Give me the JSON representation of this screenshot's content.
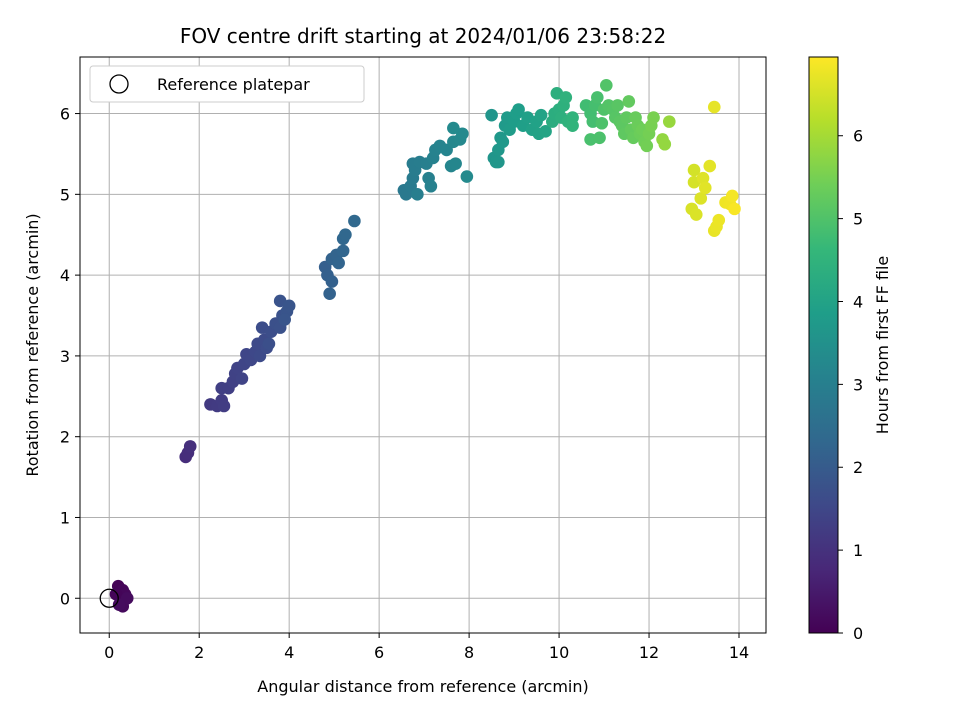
{
  "chart_data": {
    "type": "scatter",
    "title": "FOV centre drift starting at 2024/01/06 23:58:22",
    "xlabel": "Angular distance from reference (arcmin)",
    "ylabel": "Rotation from reference (arcmin)",
    "xlim": [
      -0.65,
      14.6
    ],
    "ylim": [
      -0.43,
      6.7
    ],
    "xticks": [
      0,
      2,
      4,
      6,
      8,
      10,
      12,
      14
    ],
    "yticks": [
      0,
      1,
      2,
      3,
      4,
      5,
      6
    ],
    "grid": true,
    "legend": {
      "placement": "top-left",
      "entries": [
        {
          "label": "Reference platepar",
          "marker": "open-circle"
        }
      ]
    },
    "reference_point": {
      "x": 0,
      "y": 0
    },
    "colorbar": {
      "label": "Hours from first FF file",
      "colormap": "viridis",
      "range": [
        0,
        6.95
      ],
      "ticks": [
        0,
        1,
        2,
        3,
        4,
        5,
        6
      ]
    },
    "color_stops": [
      "#440154",
      "#482878",
      "#3e4989",
      "#31688e",
      "#26828e",
      "#1f9e89",
      "#35b779",
      "#6ece58",
      "#b5de2b",
      "#fde725"
    ],
    "points": [
      {
        "x": 0.2,
        "y": 0.15,
        "hours": 0.05
      },
      {
        "x": 0.3,
        "y": 0.1,
        "hours": 0.1
      },
      {
        "x": 0.35,
        "y": 0.05,
        "hours": 0.12
      },
      {
        "x": 0.25,
        "y": -0.05,
        "hours": 0.15
      },
      {
        "x": 0.3,
        "y": -0.1,
        "hours": 0.18
      },
      {
        "x": 0.15,
        "y": 0.05,
        "hours": 0.08
      },
      {
        "x": 0.4,
        "y": 0.0,
        "hours": 0.2
      },
      {
        "x": 0.22,
        "y": -0.08,
        "hours": 0.22
      },
      {
        "x": 1.7,
        "y": 1.75,
        "hours": 0.9
      },
      {
        "x": 1.75,
        "y": 1.8,
        "hours": 0.92
      },
      {
        "x": 1.8,
        "y": 1.88,
        "hours": 0.95
      },
      {
        "x": 2.25,
        "y": 2.4,
        "hours": 1.2
      },
      {
        "x": 2.4,
        "y": 2.38,
        "hours": 1.22
      },
      {
        "x": 2.5,
        "y": 2.45,
        "hours": 1.25
      },
      {
        "x": 2.55,
        "y": 2.38,
        "hours": 1.27
      },
      {
        "x": 2.5,
        "y": 2.6,
        "hours": 1.3
      },
      {
        "x": 2.65,
        "y": 2.6,
        "hours": 1.32
      },
      {
        "x": 2.75,
        "y": 2.68,
        "hours": 1.35
      },
      {
        "x": 2.8,
        "y": 2.78,
        "hours": 1.38
      },
      {
        "x": 2.85,
        "y": 2.85,
        "hours": 1.4
      },
      {
        "x": 2.95,
        "y": 2.72,
        "hours": 1.42
      },
      {
        "x": 3.0,
        "y": 2.9,
        "hours": 1.45
      },
      {
        "x": 3.05,
        "y": 3.02,
        "hours": 1.48
      },
      {
        "x": 3.15,
        "y": 2.95,
        "hours": 1.5
      },
      {
        "x": 3.25,
        "y": 3.05,
        "hours": 1.53
      },
      {
        "x": 3.3,
        "y": 3.15,
        "hours": 1.56
      },
      {
        "x": 3.35,
        "y": 3.0,
        "hours": 1.58
      },
      {
        "x": 3.45,
        "y": 3.2,
        "hours": 1.6
      },
      {
        "x": 3.5,
        "y": 3.1,
        "hours": 1.63
      },
      {
        "x": 3.4,
        "y": 3.35,
        "hours": 1.65
      },
      {
        "x": 3.6,
        "y": 3.3,
        "hours": 1.68
      },
      {
        "x": 3.55,
        "y": 3.15,
        "hours": 1.7
      },
      {
        "x": 3.7,
        "y": 3.4,
        "hours": 1.72
      },
      {
        "x": 3.8,
        "y": 3.35,
        "hours": 1.75
      },
      {
        "x": 3.85,
        "y": 3.5,
        "hours": 1.78
      },
      {
        "x": 3.8,
        "y": 3.68,
        "hours": 1.8
      },
      {
        "x": 3.95,
        "y": 3.55,
        "hours": 1.82
      },
      {
        "x": 4.0,
        "y": 3.62,
        "hours": 1.84
      },
      {
        "x": 3.9,
        "y": 3.45,
        "hours": 1.85
      },
      {
        "x": 4.8,
        "y": 4.1,
        "hours": 2.1
      },
      {
        "x": 4.85,
        "y": 4.0,
        "hours": 2.12
      },
      {
        "x": 4.95,
        "y": 3.92,
        "hours": 2.15
      },
      {
        "x": 4.9,
        "y": 3.77,
        "hours": 2.17
      },
      {
        "x": 4.95,
        "y": 4.2,
        "hours": 2.2
      },
      {
        "x": 5.05,
        "y": 4.25,
        "hours": 2.22
      },
      {
        "x": 5.1,
        "y": 4.15,
        "hours": 2.25
      },
      {
        "x": 5.2,
        "y": 4.3,
        "hours": 2.27
      },
      {
        "x": 5.2,
        "y": 4.45,
        "hours": 2.3
      },
      {
        "x": 5.25,
        "y": 4.5,
        "hours": 2.32
      },
      {
        "x": 5.45,
        "y": 4.67,
        "hours": 2.35
      },
      {
        "x": 6.55,
        "y": 5.05,
        "hours": 2.8
      },
      {
        "x": 6.6,
        "y": 5.0,
        "hours": 2.82
      },
      {
        "x": 6.7,
        "y": 5.1,
        "hours": 2.85
      },
      {
        "x": 6.75,
        "y": 5.2,
        "hours": 2.87
      },
      {
        "x": 6.8,
        "y": 5.3,
        "hours": 2.9
      },
      {
        "x": 6.75,
        "y": 5.38,
        "hours": 2.92
      },
      {
        "x": 6.9,
        "y": 5.4,
        "hours": 2.95
      },
      {
        "x": 6.85,
        "y": 5.0,
        "hours": 2.97
      },
      {
        "x": 7.05,
        "y": 5.38,
        "hours": 3.0
      },
      {
        "x": 7.1,
        "y": 5.2,
        "hours": 3.02
      },
      {
        "x": 7.15,
        "y": 5.1,
        "hours": 3.05
      },
      {
        "x": 7.2,
        "y": 5.45,
        "hours": 3.07
      },
      {
        "x": 7.25,
        "y": 5.55,
        "hours": 3.1
      },
      {
        "x": 7.35,
        "y": 5.6,
        "hours": 3.12
      },
      {
        "x": 7.5,
        "y": 5.55,
        "hours": 3.15
      },
      {
        "x": 7.6,
        "y": 5.35,
        "hours": 3.17
      },
      {
        "x": 7.7,
        "y": 5.38,
        "hours": 3.2
      },
      {
        "x": 7.65,
        "y": 5.65,
        "hours": 3.22
      },
      {
        "x": 7.8,
        "y": 5.68,
        "hours": 3.25
      },
      {
        "x": 7.85,
        "y": 5.75,
        "hours": 3.27
      },
      {
        "x": 7.65,
        "y": 5.82,
        "hours": 3.3
      },
      {
        "x": 7.95,
        "y": 5.22,
        "hours": 3.32
      },
      {
        "x": 8.5,
        "y": 5.98,
        "hours": 3.6
      },
      {
        "x": 8.55,
        "y": 5.45,
        "hours": 3.62
      },
      {
        "x": 8.6,
        "y": 5.4,
        "hours": 3.65
      },
      {
        "x": 8.65,
        "y": 5.55,
        "hours": 3.67
      },
      {
        "x": 8.7,
        "y": 5.7,
        "hours": 3.7
      },
      {
        "x": 8.75,
        "y": 5.65,
        "hours": 3.72
      },
      {
        "x": 8.8,
        "y": 5.85,
        "hours": 3.75
      },
      {
        "x": 8.85,
        "y": 5.95,
        "hours": 3.77
      },
      {
        "x": 8.9,
        "y": 5.8,
        "hours": 3.8
      },
      {
        "x": 9.0,
        "y": 5.9,
        "hours": 3.82
      },
      {
        "x": 9.05,
        "y": 6.0,
        "hours": 3.85
      },
      {
        "x": 9.1,
        "y": 6.05,
        "hours": 3.87
      },
      {
        "x": 9.2,
        "y": 5.85,
        "hours": 3.9
      },
      {
        "x": 9.3,
        "y": 5.95,
        "hours": 3.92
      },
      {
        "x": 9.4,
        "y": 5.8,
        "hours": 3.95
      },
      {
        "x": 9.5,
        "y": 5.9,
        "hours": 3.97
      },
      {
        "x": 9.55,
        "y": 5.75,
        "hours": 4.0
      },
      {
        "x": 9.6,
        "y": 5.98,
        "hours": 4.02
      },
      {
        "x": 9.7,
        "y": 5.78,
        "hours": 4.05
      },
      {
        "x": 8.65,
        "y": 5.4,
        "hours": 3.63
      },
      {
        "x": 9.85,
        "y": 5.9,
        "hours": 4.3
      },
      {
        "x": 9.9,
        "y": 6.0,
        "hours": 4.32
      },
      {
        "x": 10.0,
        "y": 6.05,
        "hours": 4.35
      },
      {
        "x": 9.95,
        "y": 6.25,
        "hours": 4.37
      },
      {
        "x": 10.05,
        "y": 5.95,
        "hours": 4.4
      },
      {
        "x": 10.1,
        "y": 6.1,
        "hours": 4.42
      },
      {
        "x": 10.15,
        "y": 6.2,
        "hours": 4.45
      },
      {
        "x": 10.2,
        "y": 5.9,
        "hours": 4.47
      },
      {
        "x": 10.3,
        "y": 5.95,
        "hours": 4.5
      },
      {
        "x": 10.3,
        "y": 5.85,
        "hours": 4.52
      },
      {
        "x": 10.6,
        "y": 6.1,
        "hours": 4.8
      },
      {
        "x": 10.7,
        "y": 6.0,
        "hours": 4.82
      },
      {
        "x": 10.75,
        "y": 5.9,
        "hours": 4.85
      },
      {
        "x": 10.8,
        "y": 6.1,
        "hours": 4.87
      },
      {
        "x": 10.85,
        "y": 6.2,
        "hours": 4.9
      },
      {
        "x": 10.7,
        "y": 5.68,
        "hours": 4.92
      },
      {
        "x": 10.9,
        "y": 5.7,
        "hours": 4.95
      },
      {
        "x": 10.95,
        "y": 5.88,
        "hours": 4.97
      },
      {
        "x": 11.0,
        "y": 6.05,
        "hours": 5.0
      },
      {
        "x": 11.05,
        "y": 6.35,
        "hours": 5.02
      },
      {
        "x": 11.1,
        "y": 6.1,
        "hours": 5.05
      },
      {
        "x": 11.2,
        "y": 6.05,
        "hours": 5.07
      },
      {
        "x": 11.25,
        "y": 5.95,
        "hours": 5.1
      },
      {
        "x": 11.3,
        "y": 6.1,
        "hours": 5.12
      },
      {
        "x": 11.35,
        "y": 5.9,
        "hours": 5.15
      },
      {
        "x": 11.4,
        "y": 5.85,
        "hours": 5.17
      },
      {
        "x": 11.45,
        "y": 5.75,
        "hours": 5.2
      },
      {
        "x": 11.5,
        "y": 5.95,
        "hours": 5.22
      },
      {
        "x": 11.55,
        "y": 6.15,
        "hours": 5.25
      },
      {
        "x": 11.6,
        "y": 5.8,
        "hours": 5.27
      },
      {
        "x": 11.65,
        "y": 5.7,
        "hours": 5.3
      },
      {
        "x": 11.7,
        "y": 5.95,
        "hours": 5.32
      },
      {
        "x": 11.75,
        "y": 5.85,
        "hours": 5.35
      },
      {
        "x": 11.8,
        "y": 5.75,
        "hours": 5.37
      },
      {
        "x": 11.85,
        "y": 5.8,
        "hours": 5.4
      },
      {
        "x": 11.9,
        "y": 5.65,
        "hours": 5.42
      },
      {
        "x": 11.95,
        "y": 5.6,
        "hours": 5.45
      },
      {
        "x": 12.0,
        "y": 5.75,
        "hours": 5.47
      },
      {
        "x": 12.05,
        "y": 5.85,
        "hours": 5.5
      },
      {
        "x": 12.1,
        "y": 5.95,
        "hours": 5.52
      },
      {
        "x": 12.3,
        "y": 5.68,
        "hours": 5.8
      },
      {
        "x": 12.35,
        "y": 5.62,
        "hours": 5.82
      },
      {
        "x": 12.45,
        "y": 5.9,
        "hours": 5.85
      },
      {
        "x": 13.0,
        "y": 5.3,
        "hours": 6.5
      },
      {
        "x": 13.0,
        "y": 5.15,
        "hours": 6.52
      },
      {
        "x": 12.95,
        "y": 4.82,
        "hours": 6.55
      },
      {
        "x": 13.05,
        "y": 4.75,
        "hours": 6.57
      },
      {
        "x": 13.15,
        "y": 4.95,
        "hours": 6.6
      },
      {
        "x": 13.2,
        "y": 5.2,
        "hours": 6.62
      },
      {
        "x": 13.25,
        "y": 5.08,
        "hours": 6.65
      },
      {
        "x": 13.35,
        "y": 5.35,
        "hours": 6.67
      },
      {
        "x": 13.45,
        "y": 6.08,
        "hours": 6.7
      },
      {
        "x": 13.45,
        "y": 4.55,
        "hours": 6.72
      },
      {
        "x": 13.5,
        "y": 4.6,
        "hours": 6.75
      },
      {
        "x": 13.55,
        "y": 4.68,
        "hours": 6.77
      },
      {
        "x": 13.7,
        "y": 4.9,
        "hours": 6.8
      },
      {
        "x": 13.8,
        "y": 4.88,
        "hours": 6.82
      },
      {
        "x": 13.85,
        "y": 4.98,
        "hours": 6.85
      },
      {
        "x": 13.9,
        "y": 4.82,
        "hours": 6.9
      }
    ]
  }
}
